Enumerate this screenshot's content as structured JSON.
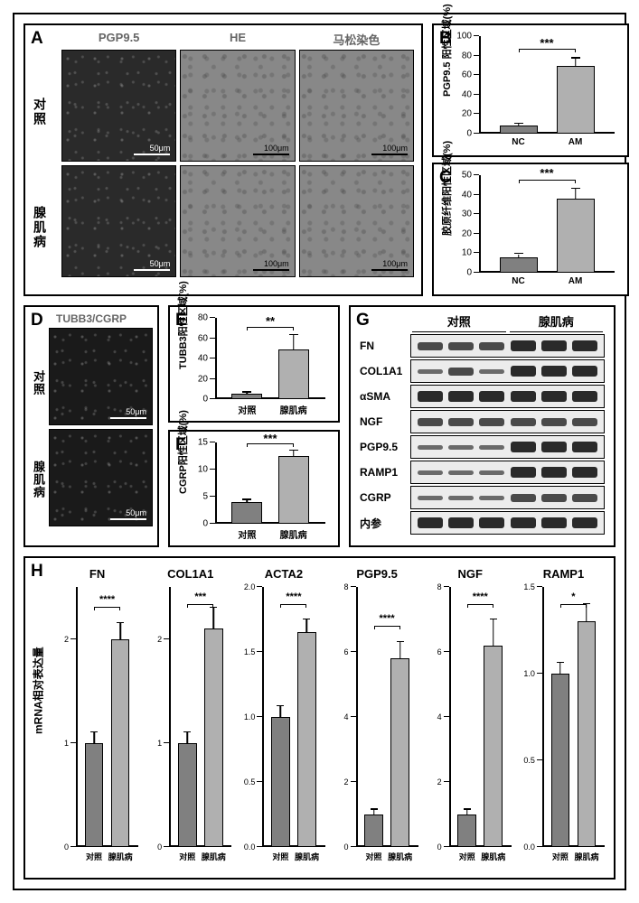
{
  "panelA": {
    "letter": "A",
    "col_labels": [
      "PGP9.5",
      "HE",
      "马松染色"
    ],
    "row_labels": [
      "对照",
      "腺肌病"
    ],
    "scales": [
      "50μm",
      "100μm",
      "100μm"
    ],
    "col_label_color": "#666666",
    "dark_bg": "#2a2a2a",
    "light_bg": "#8a8a8a"
  },
  "panelB": {
    "letter": "B",
    "ylabel": "PGP9.5 阳性区域(%)",
    "ylim": [
      0,
      100
    ],
    "yticks": [
      0,
      20,
      40,
      60,
      80,
      100
    ],
    "categories": [
      "NC",
      "AM"
    ],
    "values": [
      8,
      69
    ],
    "errors": [
      2,
      8
    ],
    "bar_colors": [
      "#808080",
      "#b0b0b0"
    ],
    "sig": "***",
    "label_fontsize": 11
  },
  "panelC": {
    "letter": "C",
    "ylabel": "胶原纤维阳性区域(%)",
    "ylim": [
      0,
      50
    ],
    "yticks": [
      0,
      10,
      20,
      30,
      40,
      50
    ],
    "categories": [
      "NC",
      "AM"
    ],
    "values": [
      8,
      38
    ],
    "errors": [
      1.5,
      5
    ],
    "bar_colors": [
      "#808080",
      "#b0b0b0"
    ],
    "sig": "***"
  },
  "panelD": {
    "letter": "D",
    "header": "TUBB3/CGRP",
    "row_labels": [
      "对照",
      "腺肌病"
    ],
    "scale": "50μm",
    "dark_bg": "#1a1a1a"
  },
  "panelE": {
    "letter": "E",
    "ylabel": "TUBB3阳性区域(%)",
    "ylim": [
      0,
      80
    ],
    "yticks": [
      0,
      20,
      40,
      60,
      80
    ],
    "categories": [
      "对照",
      "腺肌病"
    ],
    "values": [
      5,
      49
    ],
    "errors": [
      1.5,
      14
    ],
    "bar_colors": [
      "#808080",
      "#b0b0b0"
    ],
    "sig": "**"
  },
  "panelF": {
    "letter": "F",
    "ylabel": "CGRP阳性区域(%)",
    "ylim": [
      0,
      15
    ],
    "yticks": [
      0,
      5,
      10,
      15
    ],
    "categories": [
      "对照",
      "腺肌病"
    ],
    "values": [
      4,
      12.5
    ],
    "errors": [
      0.4,
      1
    ],
    "bar_colors": [
      "#808080",
      "#b0b0b0"
    ],
    "sig": "***"
  },
  "panelG": {
    "letter": "G",
    "headers": [
      "对照",
      "腺肌病"
    ],
    "rows": [
      "FN",
      "COL1A1",
      "αSMA",
      "NGF",
      "PGP9.5",
      "RAMP1",
      "CGRP",
      "内参"
    ],
    "band_weights": {
      "FN": [
        "",
        "",
        "",
        "thick",
        "thick",
        "thick"
      ],
      "COL1A1": [
        "thin",
        "",
        "thin",
        "thick",
        "thick",
        "thick"
      ],
      "αSMA": [
        "thick",
        "thick",
        "thick",
        "thick",
        "thick",
        "thick"
      ],
      "NGF": [
        "",
        "",
        "",
        "",
        "",
        ""
      ],
      "PGP9.5": [
        "thin",
        "thin",
        "thin",
        "thick",
        "thick",
        "thick"
      ],
      "RAMP1": [
        "thin",
        "thin",
        "thin",
        "thick",
        "thick",
        "thick"
      ],
      "CGRP": [
        "thin",
        "thin",
        "thin",
        "",
        "",
        ""
      ],
      "内参": [
        "thick",
        "thick",
        "thick",
        "thick",
        "thick",
        "thick"
      ]
    }
  },
  "panelH": {
    "letter": "H",
    "ylabel": "mRNA相对表达量",
    "yticks": [
      0.0,
      0.5,
      1.0,
      1.5,
      2.0,
      2.5,
      3.0
    ],
    "charts": [
      {
        "title": "FN",
        "values": [
          1.0,
          2.0
        ],
        "errors": [
          0.1,
          0.15
        ],
        "sig": "****",
        "ymax": 2.5
      },
      {
        "title": "COL1A1",
        "values": [
          1.0,
          2.1
        ],
        "errors": [
          0.1,
          0.2
        ],
        "sig": "***",
        "ymax": 2.5
      },
      {
        "title": "ACTA2",
        "values": [
          1.0,
          1.65
        ],
        "errors": [
          0.08,
          0.1
        ],
        "sig": "****",
        "ymax": 2.0
      },
      {
        "title": "PGP9.5",
        "values": [
          1.0,
          5.8
        ],
        "errors": [
          0.15,
          0.5
        ],
        "sig": "****",
        "ymax": 8
      },
      {
        "title": "NGF",
        "values": [
          1.0,
          6.2
        ],
        "errors": [
          0.15,
          0.8
        ],
        "sig": "****",
        "ymax": 8
      },
      {
        "title": "RAMP1",
        "values": [
          1.0,
          1.3
        ],
        "errors": [
          0.06,
          0.1
        ],
        "sig": "*",
        "ymax": 1.5
      }
    ],
    "categories": [
      "对照",
      "腺肌病"
    ],
    "bar_colors": [
      "#808080",
      "#b0b0b0"
    ]
  }
}
